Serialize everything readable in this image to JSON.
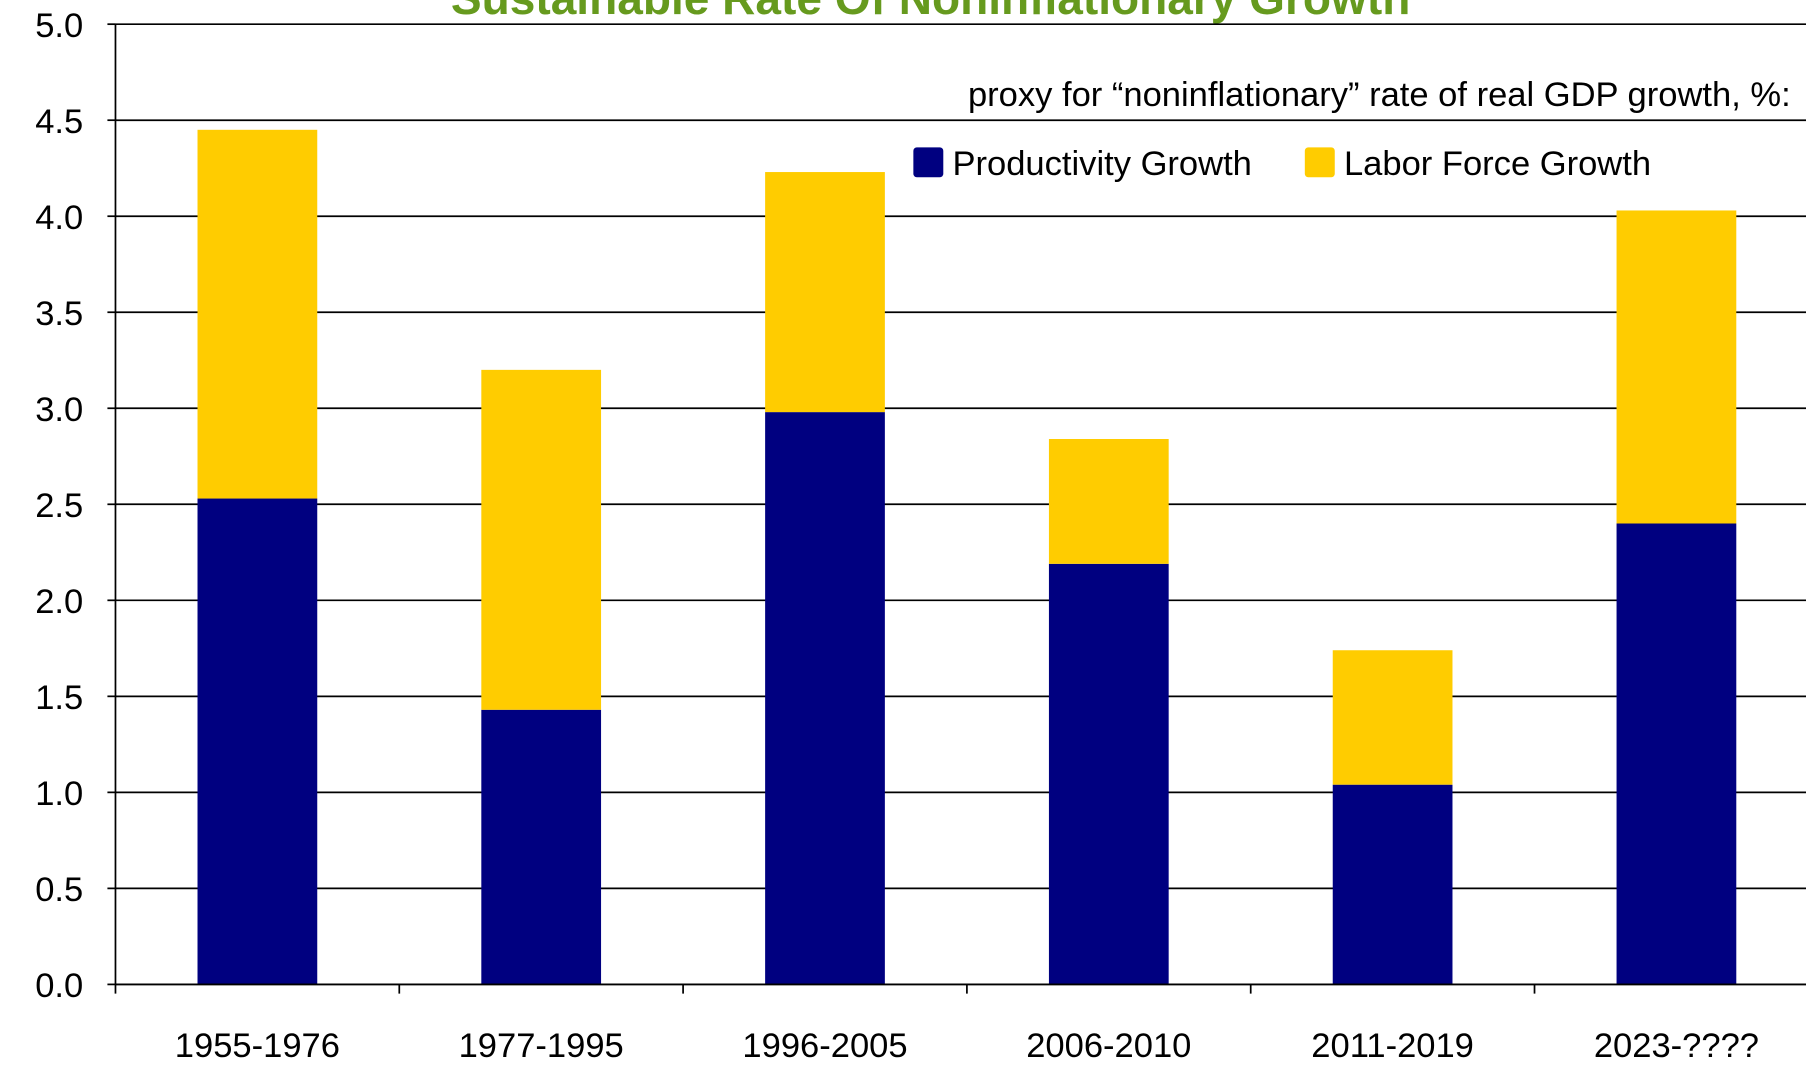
{
  "chart_data": {
    "type": "stacked_bar",
    "title": "Sustainable Rate Of Noninflationary Growth",
    "subtitle": "proxy for “noninflationary” rate of real GDP growth, %:",
    "categories": [
      "1955-1976",
      "1977-1995",
      "1996-2005",
      "2006-2010",
      "2011-2019",
      "2023-????"
    ],
    "series": [
      {
        "name": "Productivity Growth",
        "color": "#000080",
        "values": [
          2.53,
          1.43,
          2.98,
          2.19,
          1.04,
          2.4
        ]
      },
      {
        "name": "Labor Force Growth",
        "color": "#ffcc00",
        "values": [
          1.92,
          1.77,
          1.25,
          0.65,
          0.7,
          1.63
        ]
      }
    ],
    "ylim": [
      0,
      5
    ],
    "yticks": [
      {
        "value": 0,
        "label": "0.0"
      },
      {
        "value": 0.5,
        "label": "0.5"
      },
      {
        "value": 1,
        "label": "1.0"
      },
      {
        "value": 1.5,
        "label": "1.5"
      },
      {
        "value": 2,
        "label": "2.0"
      },
      {
        "value": 2.5,
        "label": "2.5"
      },
      {
        "value": 3,
        "label": "3.0"
      },
      {
        "value": 3.5,
        "label": "3.5"
      },
      {
        "value": 4,
        "label": "4.0"
      },
      {
        "value": 4.5,
        "label": "4.5"
      },
      {
        "value": 5,
        "label": "5.0"
      }
    ],
    "grid": true
  }
}
